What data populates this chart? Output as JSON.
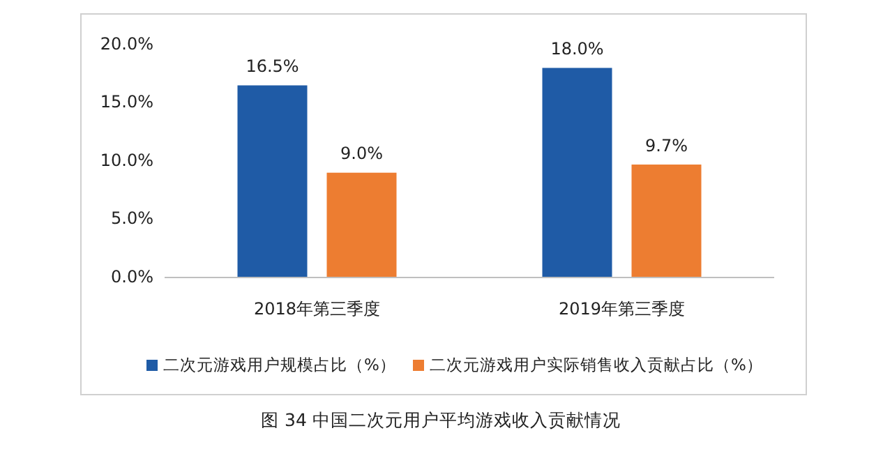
{
  "chart_data": {
    "type": "bar",
    "categories": [
      "2018年第三季度",
      "2019年第三季度"
    ],
    "series": [
      {
        "name": "二次元游戏用户规模占比（%）",
        "color": "#1f5ba6",
        "values": [
          16.5,
          18.0
        ],
        "value_labels": [
          "16.5%",
          "18.0%"
        ]
      },
      {
        "name": "二次元游戏用户实际销售收入贡献占比（%）",
        "color": "#ed7d31",
        "values": [
          9.0,
          9.7
        ],
        "value_labels": [
          "9.0%",
          "9.7%"
        ]
      }
    ],
    "ylim": [
      0,
      20
    ],
    "yticks": [
      {
        "value": 0,
        "label": "0.0%"
      },
      {
        "value": 5,
        "label": "5.0%"
      },
      {
        "value": 10,
        "label": "10.0%"
      },
      {
        "value": 15,
        "label": "15.0%"
      },
      {
        "value": 20,
        "label": "20.0%"
      }
    ],
    "legend": "bottom",
    "annotations": [
      "图 34  中国二次元用户平均游戏收入贡献情况"
    ]
  }
}
